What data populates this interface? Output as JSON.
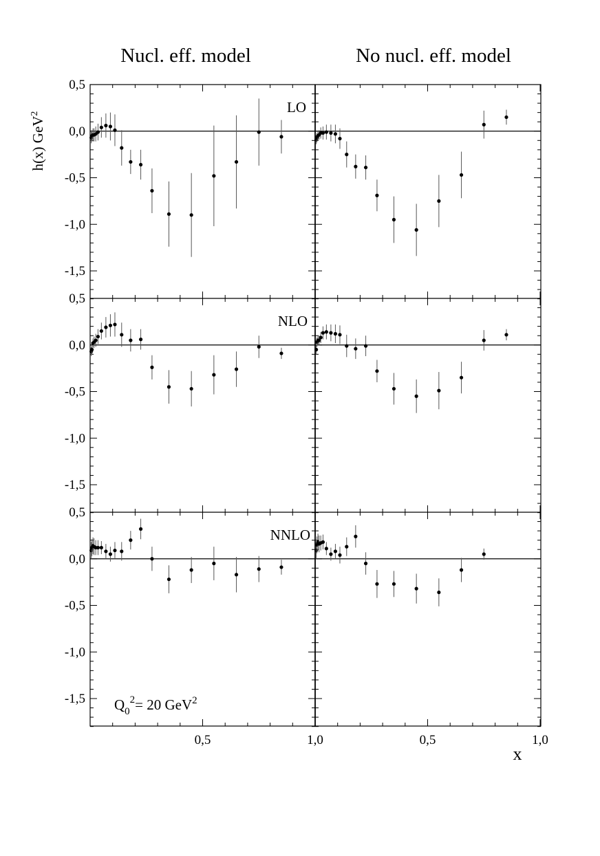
{
  "columns": [
    "Nucl. eff. model",
    "No nucl. eff. model"
  ],
  "y_axis": {
    "label": "h(x) GeV",
    "label_sup": "2",
    "ticks": [
      0.5,
      0.0,
      -0.5,
      -1.0,
      -1.5
    ],
    "tick_labels": [
      "0,5",
      "0,0",
      "-0,5",
      "-1,0",
      "-1,5"
    ]
  },
  "x_axis": {
    "label": "x",
    "tick_labels": [
      "0,5",
      "1,0",
      "0,5",
      "1,0"
    ]
  },
  "annotation": {
    "q": "Q",
    "sub": "0",
    "sup": "2",
    "rest": "= 20 GeV",
    "sup2": "2"
  },
  "chart_data": {
    "type": "scatter",
    "xlim": [
      0,
      1
    ],
    "ylim": [
      -1.8,
      0.5
    ],
    "grid": false,
    "reference_line_y": 0,
    "rows": [
      "LO",
      "NLO",
      "NNLO"
    ],
    "panels": [
      {
        "row": "LO",
        "column": "Nucl. eff. model",
        "points": [
          [
            0.005,
            -0.07,
            0.06
          ],
          [
            0.008,
            -0.05,
            0.06
          ],
          [
            0.0125,
            -0.04,
            0.07
          ],
          [
            0.0175,
            -0.04,
            0.07
          ],
          [
            0.025,
            -0.03,
            0.08
          ],
          [
            0.035,
            -0.01,
            0.09
          ],
          [
            0.05,
            0.04,
            0.11
          ],
          [
            0.07,
            0.06,
            0.13
          ],
          [
            0.09,
            0.05,
            0.15
          ],
          [
            0.11,
            0.01,
            0.17
          ],
          [
            0.14,
            -0.18,
            0.19
          ],
          [
            0.18,
            -0.33,
            0.13
          ],
          [
            0.225,
            -0.36,
            0.16
          ],
          [
            0.275,
            -0.64,
            0.24
          ],
          [
            0.35,
            -0.89,
            0.35
          ],
          [
            0.45,
            -0.9,
            0.45
          ],
          [
            0.55,
            -0.48,
            0.54
          ],
          [
            0.65,
            -0.33,
            0.5
          ],
          [
            0.75,
            -0.01,
            0.36
          ],
          [
            0.85,
            -0.06,
            0.18
          ]
        ]
      },
      {
        "row": "LO",
        "column": "No nucl. eff. model",
        "points": [
          [
            0.005,
            -0.09,
            0.05
          ],
          [
            0.008,
            -0.07,
            0.05
          ],
          [
            0.0125,
            -0.05,
            0.05
          ],
          [
            0.0175,
            -0.04,
            0.05
          ],
          [
            0.025,
            -0.02,
            0.06
          ],
          [
            0.035,
            -0.02,
            0.07
          ],
          [
            0.05,
            -0.01,
            0.08
          ],
          [
            0.07,
            -0.02,
            0.09
          ],
          [
            0.09,
            -0.03,
            0.1
          ],
          [
            0.11,
            -0.08,
            0.11
          ],
          [
            0.14,
            -0.25,
            0.14
          ],
          [
            0.18,
            -0.38,
            0.13
          ],
          [
            0.225,
            -0.39,
            0.13
          ],
          [
            0.275,
            -0.69,
            0.17
          ],
          [
            0.35,
            -0.95,
            0.25
          ],
          [
            0.45,
            -1.06,
            0.28
          ],
          [
            0.55,
            -0.75,
            0.28
          ],
          [
            0.65,
            -0.47,
            0.25
          ],
          [
            0.75,
            0.07,
            0.15
          ],
          [
            0.85,
            0.15,
            0.08
          ]
        ]
      },
      {
        "row": "NLO",
        "column": "Nucl. eff. model",
        "points": [
          [
            0.005,
            -0.07,
            0.05
          ],
          [
            0.008,
            -0.05,
            0.05
          ],
          [
            0.0125,
            0.02,
            0.05
          ],
          [
            0.0175,
            0.03,
            0.06
          ],
          [
            0.025,
            0.05,
            0.07
          ],
          [
            0.035,
            0.09,
            0.08
          ],
          [
            0.05,
            0.15,
            0.09
          ],
          [
            0.07,
            0.19,
            0.11
          ],
          [
            0.09,
            0.21,
            0.12
          ],
          [
            0.11,
            0.22,
            0.13
          ],
          [
            0.14,
            0.11,
            0.13
          ],
          [
            0.18,
            0.05,
            0.12
          ],
          [
            0.225,
            0.06,
            0.11
          ],
          [
            0.275,
            -0.24,
            0.13
          ],
          [
            0.35,
            -0.45,
            0.18
          ],
          [
            0.45,
            -0.47,
            0.19
          ],
          [
            0.55,
            -0.32,
            0.21
          ],
          [
            0.65,
            -0.26,
            0.19
          ],
          [
            0.75,
            -0.02,
            0.12
          ],
          [
            0.85,
            -0.09,
            0.06
          ]
        ]
      },
      {
        "row": "NLO",
        "column": "No nucl. eff. model",
        "points": [
          [
            0.005,
            -0.05,
            0.05
          ],
          [
            0.008,
            0.03,
            0.05
          ],
          [
            0.0125,
            0.05,
            0.05
          ],
          [
            0.0175,
            0.05,
            0.05
          ],
          [
            0.025,
            0.08,
            0.06
          ],
          [
            0.035,
            0.13,
            0.07
          ],
          [
            0.05,
            0.14,
            0.08
          ],
          [
            0.07,
            0.13,
            0.09
          ],
          [
            0.09,
            0.12,
            0.1
          ],
          [
            0.11,
            0.11,
            0.1
          ],
          [
            0.14,
            -0.01,
            0.12
          ],
          [
            0.18,
            -0.04,
            0.11
          ],
          [
            0.225,
            -0.01,
            0.11
          ],
          [
            0.275,
            -0.28,
            0.12
          ],
          [
            0.35,
            -0.47,
            0.17
          ],
          [
            0.45,
            -0.55,
            0.18
          ],
          [
            0.55,
            -0.49,
            0.2
          ],
          [
            0.65,
            -0.35,
            0.17
          ],
          [
            0.75,
            0.05,
            0.11
          ],
          [
            0.85,
            0.11,
            0.06
          ]
        ]
      },
      {
        "row": "NNLO",
        "column": "Nucl. eff. model",
        "points": [
          [
            0.005,
            0.09,
            0.09
          ],
          [
            0.008,
            0.12,
            0.09
          ],
          [
            0.0125,
            0.14,
            0.09
          ],
          [
            0.0175,
            0.13,
            0.09
          ],
          [
            0.025,
            0.12,
            0.08
          ],
          [
            0.035,
            0.12,
            0.08
          ],
          [
            0.05,
            0.12,
            0.07
          ],
          [
            0.07,
            0.08,
            0.08
          ],
          [
            0.09,
            0.05,
            0.08
          ],
          [
            0.11,
            0.09,
            0.09
          ],
          [
            0.14,
            0.08,
            0.1
          ],
          [
            0.18,
            0.2,
            0.1
          ],
          [
            0.225,
            0.32,
            0.11
          ],
          [
            0.275,
            0.0,
            0.13
          ],
          [
            0.35,
            -0.22,
            0.15
          ],
          [
            0.45,
            -0.12,
            0.14
          ],
          [
            0.55,
            -0.05,
            0.18
          ],
          [
            0.65,
            -0.17,
            0.19
          ],
          [
            0.75,
            -0.11,
            0.14
          ],
          [
            0.85,
            -0.09,
            0.08
          ]
        ]
      },
      {
        "row": "NNLO",
        "column": "No nucl. eff. model",
        "points": [
          [
            0.005,
            0.09,
            0.09
          ],
          [
            0.008,
            0.15,
            0.09
          ],
          [
            0.0125,
            0.18,
            0.09
          ],
          [
            0.0175,
            0.16,
            0.09
          ],
          [
            0.025,
            0.17,
            0.08
          ],
          [
            0.035,
            0.18,
            0.08
          ],
          [
            0.05,
            0.11,
            0.07
          ],
          [
            0.07,
            0.05,
            0.07
          ],
          [
            0.09,
            0.08,
            0.08
          ],
          [
            0.11,
            0.04,
            0.09
          ],
          [
            0.14,
            0.13,
            0.1
          ],
          [
            0.18,
            0.24,
            0.12
          ],
          [
            0.225,
            -0.05,
            0.12
          ],
          [
            0.275,
            -0.27,
            0.15
          ],
          [
            0.35,
            -0.27,
            0.14
          ],
          [
            0.45,
            -0.32,
            0.16
          ],
          [
            0.55,
            -0.36,
            0.15
          ],
          [
            0.65,
            -0.12,
            0.13
          ],
          [
            0.75,
            0.05,
            0.06
          ]
        ]
      }
    ]
  }
}
